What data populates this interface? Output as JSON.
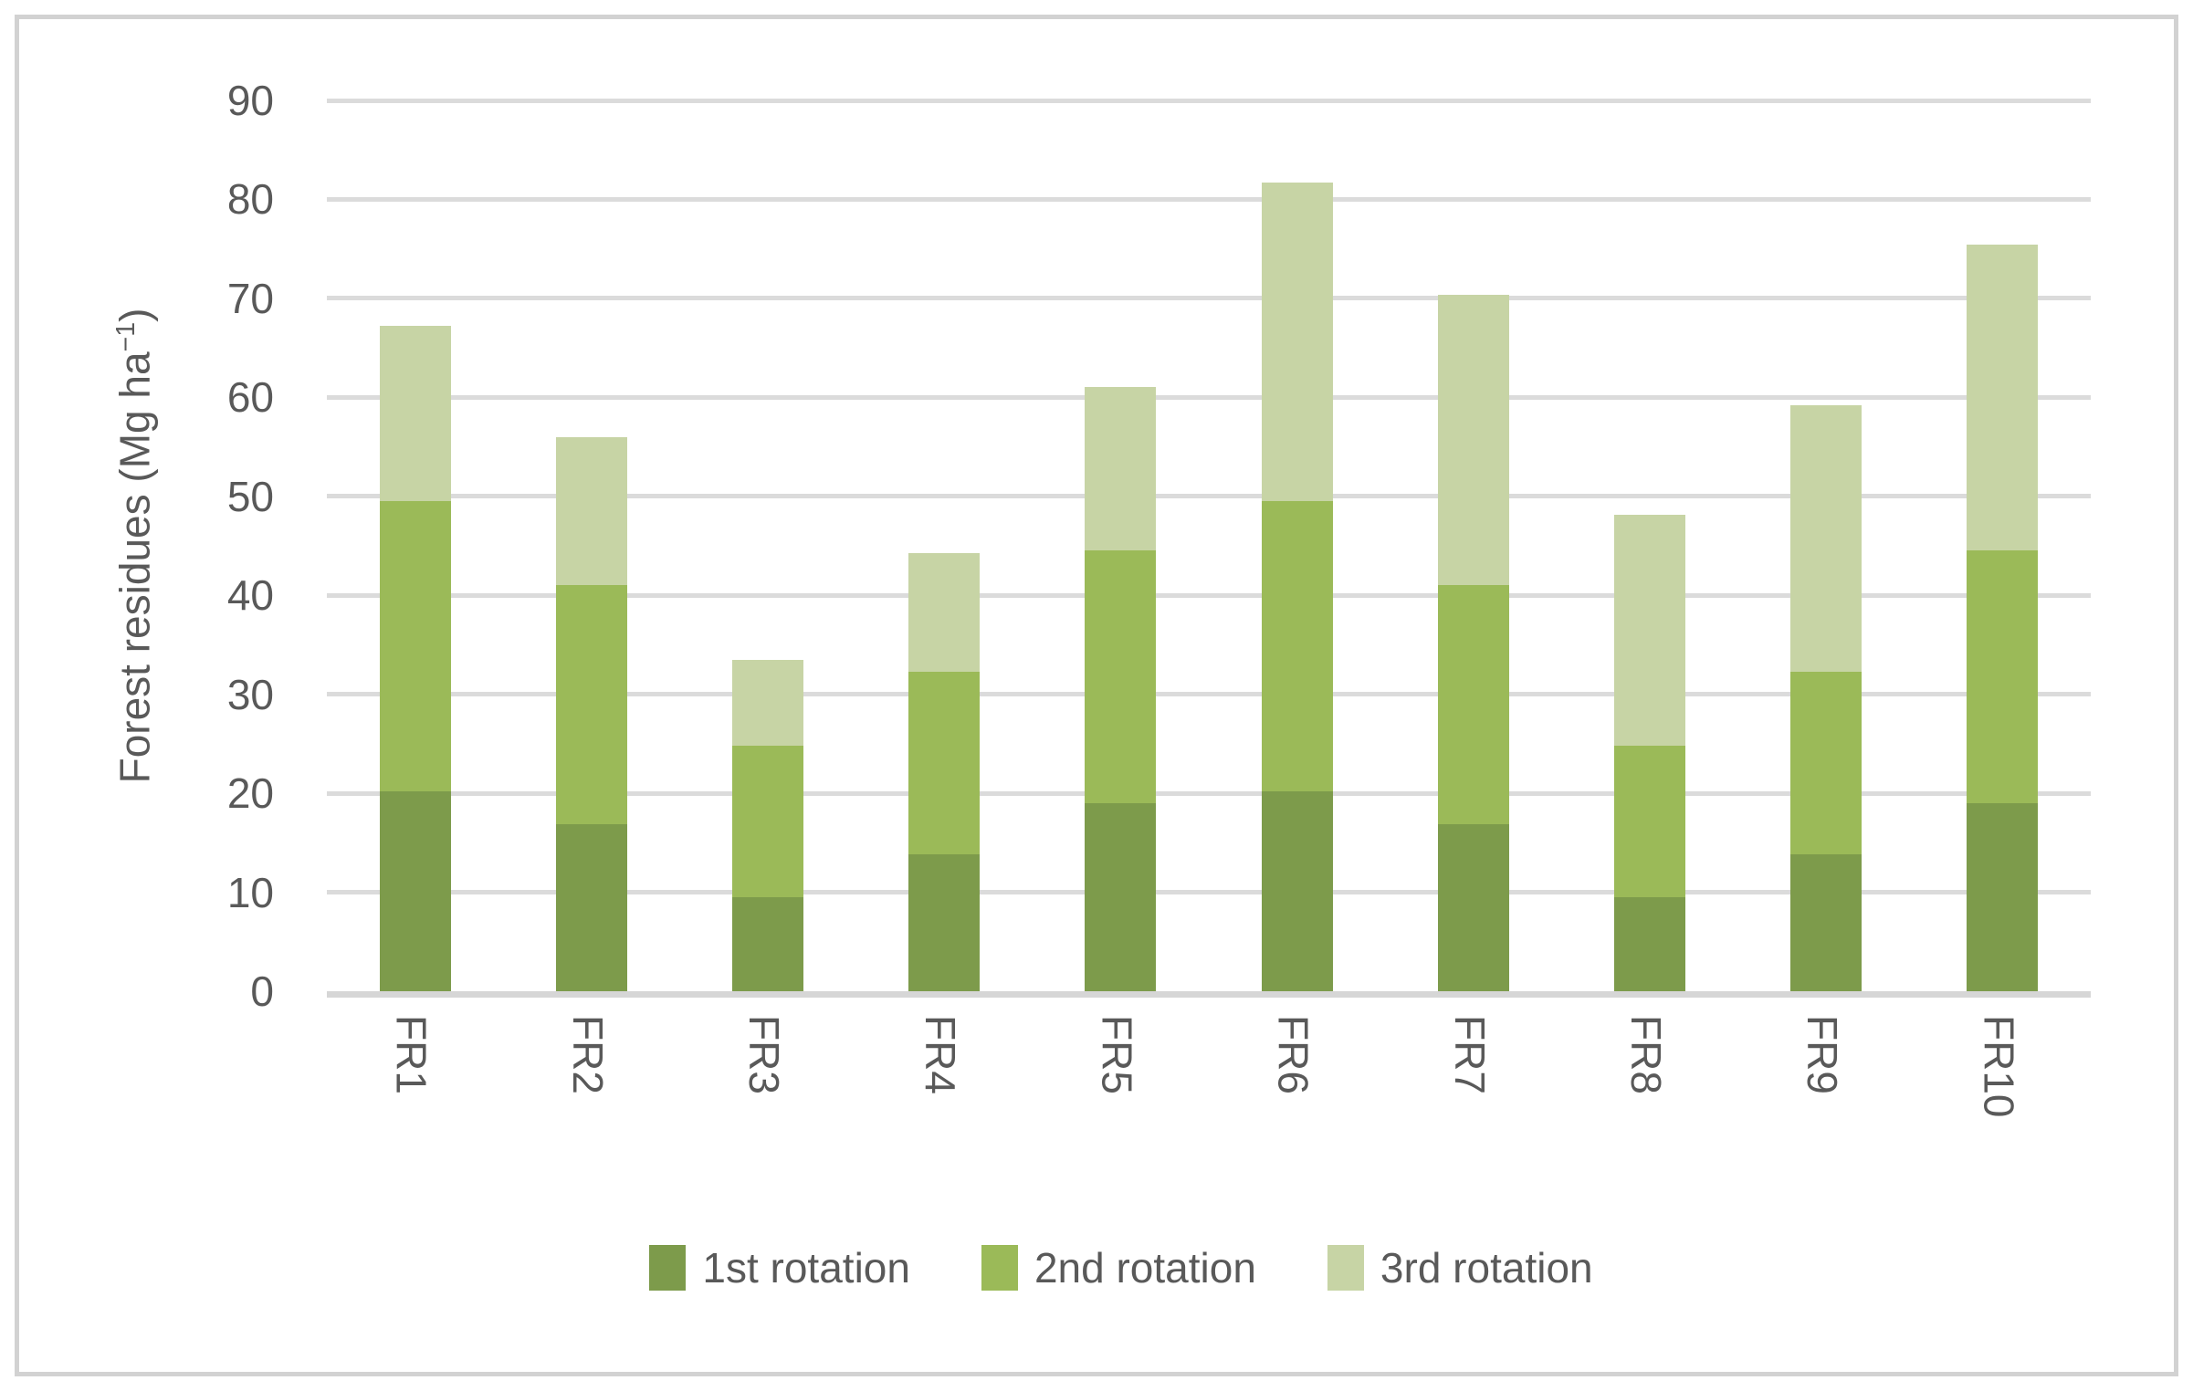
{
  "chart_data": {
    "type": "bar",
    "stacked": true,
    "categories": [
      "FR1",
      "FR2",
      "FR3",
      "FR4",
      "FR5",
      "FR6",
      "FR7",
      "FR8",
      "FR9",
      "FR10"
    ],
    "series": [
      {
        "name": "1st rotation",
        "color": "#7D9B4B",
        "values": [
          20.2,
          16.9,
          9.5,
          13.8,
          19.0,
          20.2,
          16.9,
          9.5,
          13.8,
          19.0
        ]
      },
      {
        "name": "2nd rotation",
        "color": "#9BBA58",
        "values": [
          29.3,
          24.1,
          15.3,
          18.5,
          25.5,
          29.3,
          24.1,
          15.3,
          18.5,
          25.5
        ]
      },
      {
        "name": "3rd rotation",
        "color": "#C7D4A5",
        "values": [
          17.7,
          15.0,
          8.7,
          12.0,
          16.5,
          32.2,
          29.4,
          23.3,
          26.9,
          30.9
        ]
      }
    ],
    "stack_totals": [
      67.2,
      56.0,
      33.5,
      44.3,
      61.0,
      81.7,
      70.4,
      48.1,
      59.2,
      75.4
    ],
    "title": "",
    "xlabel": "",
    "ylabel_parts": {
      "pre": "Forest residues (Mg ha",
      "sup": "−1",
      "post": ")"
    },
    "yticks": [
      0,
      10,
      20,
      30,
      40,
      50,
      60,
      70,
      80,
      90
    ],
    "ylim": [
      0,
      90
    ],
    "grid": true,
    "legend_position": "bottom",
    "x_tick_rotation_deg": 90
  },
  "colors": {
    "gridline": "#DBDBDB",
    "axis_line": "#D6D6D6",
    "text": "#595959",
    "border": "#D2D2D2",
    "background": "#FFFFFF"
  }
}
